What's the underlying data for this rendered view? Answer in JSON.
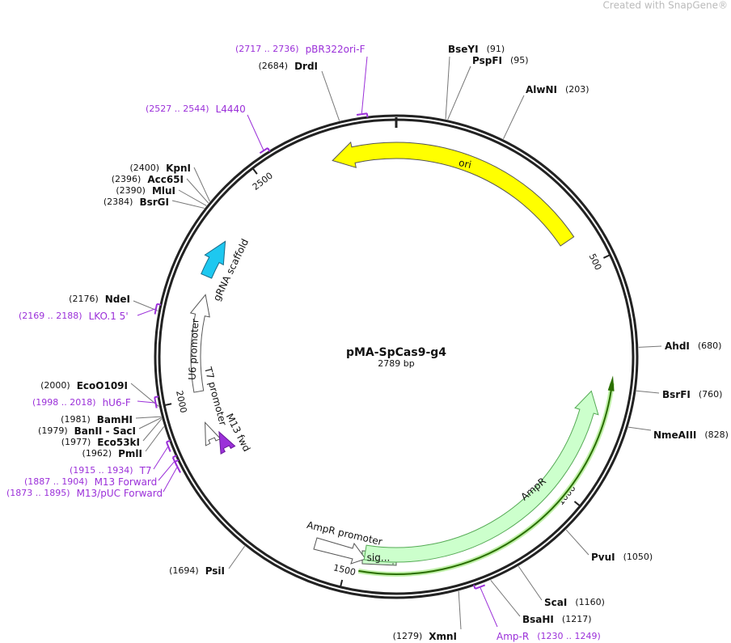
{
  "header": {
    "watermark": "Created with SnapGene®"
  },
  "map": {
    "name": "pMA-SpCas9-g4",
    "length": "2789 bp",
    "ticks": [
      500,
      1000,
      1500,
      2000,
      2500
    ]
  },
  "sites": [
    {
      "name": "BseYI",
      "position": "(91)"
    },
    {
      "name": "PspFI",
      "position": "(95)"
    },
    {
      "name": "AlwNI",
      "position": "(203)"
    },
    {
      "name": "AhdI",
      "position": "(680)"
    },
    {
      "name": "BsrFI",
      "position": "(760)"
    },
    {
      "name": "NmeAIII",
      "position": "(828)"
    },
    {
      "name": "PvuI",
      "position": "(1050)"
    },
    {
      "name": "ScaI",
      "position": "(1160)"
    },
    {
      "name": "BsaHI",
      "position": "(1217)"
    },
    {
      "name": "XmnI",
      "position": "(1279)"
    },
    {
      "name": "PsiI",
      "position": "(1694)"
    },
    {
      "name": "PmlI",
      "position": "(1962)"
    },
    {
      "name": "Eco53kI",
      "position": "(1977)"
    },
    {
      "name": "BanII - SacI",
      "position": "(1979)"
    },
    {
      "name": "BamHI",
      "position": "(1981)"
    },
    {
      "name": "EcoO109I",
      "position": "(2000)"
    },
    {
      "name": "NdeI",
      "position": "(2176)"
    },
    {
      "name": "BsrGI",
      "position": "(2384)"
    },
    {
      "name": "MluI",
      "position": "(2390)"
    },
    {
      "name": "Acc65I",
      "position": "(2396)"
    },
    {
      "name": "KpnI",
      "position": "(2400)"
    },
    {
      "name": "DrdI",
      "position": "(2684)"
    }
  ],
  "primers": [
    {
      "name": "Amp-R",
      "range": "(1230 .. 1249)"
    },
    {
      "name": "M13/pUC Forward",
      "range": "(1873 .. 1895)"
    },
    {
      "name": "M13 Forward",
      "range": "(1887 .. 1904)"
    },
    {
      "name": "T7",
      "range": "(1915 .. 1934)"
    },
    {
      "name": "hU6-F",
      "range": "(1998 .. 2018)"
    },
    {
      "name": "LKO.1 5'",
      "range": "(2169 .. 2188)"
    },
    {
      "name": "L4440",
      "range": "(2527 .. 2544)"
    },
    {
      "name": "pBR322ori-F",
      "range": "(2717 .. 2736)"
    }
  ],
  "features": [
    {
      "label": "ori"
    },
    {
      "label": "AmpR"
    },
    {
      "label": "AmpR promoter"
    },
    {
      "label": "sig..."
    },
    {
      "label": "gRNA scaffold"
    },
    {
      "label": "U6 promoter"
    },
    {
      "label": "T7 promoter"
    },
    {
      "label": "M13 fwd"
    }
  ]
}
